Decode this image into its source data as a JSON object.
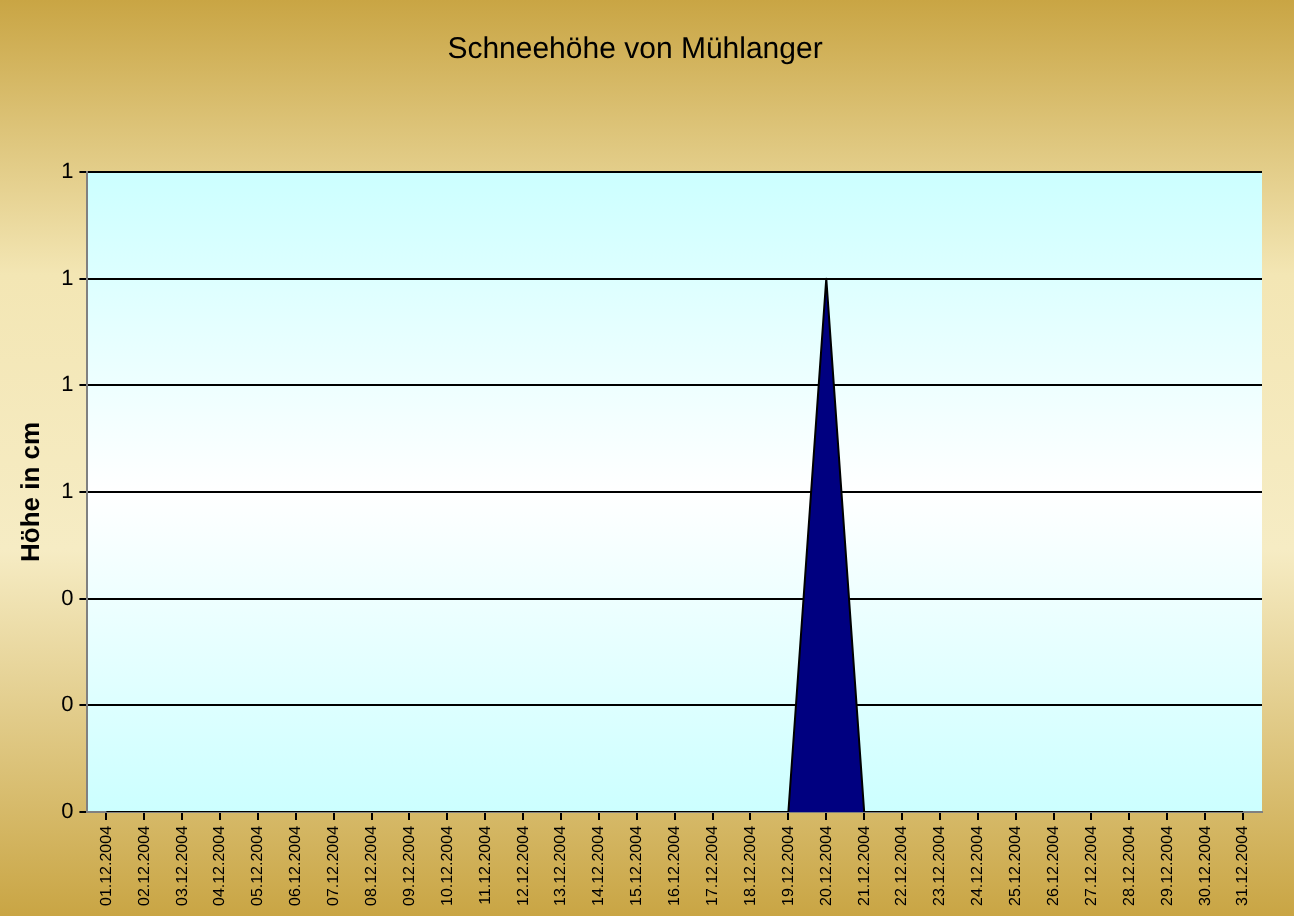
{
  "chart_data": {
    "type": "area",
    "title": "Schneehöhe von Mühlanger",
    "ylabel": "Höhe in cm",
    "categories": [
      "01.12.2004",
      "02.12.2004",
      "03.12.2004",
      "04.12.2004",
      "05.12.2004",
      "06.12.2004",
      "07.12.2004",
      "08.12.2004",
      "09.12.2004",
      "10.12.2004",
      "11.12.2004",
      "12.12.2004",
      "13.12.2004",
      "14.12.2004",
      "15.12.2004",
      "16.12.2004",
      "17.12.2004",
      "18.12.2004",
      "19.12.2004",
      "20.12.2004",
      "21.12.2004",
      "22.12.2004",
      "23.12.2004",
      "24.12.2004",
      "25.12.2004",
      "26.12.2004",
      "27.12.2004",
      "28.12.2004",
      "29.12.2004",
      "30.12.2004",
      "31.12.2004"
    ],
    "values": [
      0,
      0,
      0,
      0,
      0,
      0,
      0,
      0,
      0,
      0,
      0,
      0,
      0,
      0,
      0,
      0,
      0,
      0,
      0,
      1,
      0,
      0,
      0,
      0,
      0,
      0,
      0,
      0,
      0,
      0,
      0
    ],
    "color": "#000080",
    "ylim": [
      0,
      1.2
    ],
    "yticks": [
      0,
      {
        "value": 0.2,
        "label": "0"
      },
      {
        "value": 0.4,
        "label": "0"
      },
      {
        "value": 0.6,
        "label": "1"
      },
      {
        "value": 0.8,
        "label": "1"
      },
      {
        "value": 1,
        "label": "1"
      },
      {
        "value": 1.2,
        "label": "1"
      }
    ],
    "grid": true
  }
}
